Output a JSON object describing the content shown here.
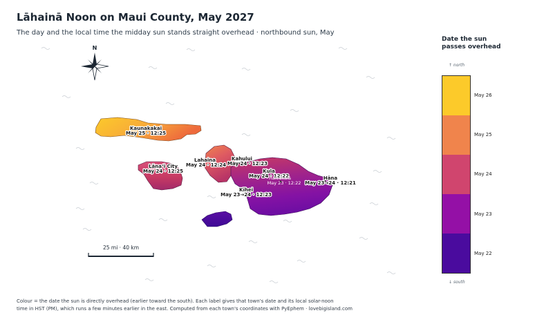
{
  "header": {
    "title": "Lāhainā Noon on Maui County, May 2027",
    "subtitle": "The day and the local time the midday sun stands straight overhead  ·  northbound sun, May"
  },
  "compass": {
    "north_label": "N"
  },
  "scale_bar": {
    "label": "25 mi  ·  40 km"
  },
  "legend": {
    "title_line1": "Date the sun",
    "title_line2": "passes overhead",
    "north_note": "↑ north",
    "south_note": "↓ south",
    "stops": [
      {
        "label": "May 26",
        "color": "#fcca2a"
      },
      {
        "label": "May 25",
        "color": "#f0844c"
      },
      {
        "label": "May 24",
        "color": "#d0456e"
      },
      {
        "label": "May 23",
        "color": "#9410a6"
      },
      {
        "label": "May 22",
        "color": "#4a0b9e"
      }
    ]
  },
  "towns": [
    {
      "name": "Kaunakakai",
      "time": "May 25 · 12:25"
    },
    {
      "name": "Lāna‘i City",
      "time": "May 24 · 12:25"
    },
    {
      "name": "Lahaina",
      "time": "May 24 · 12:24"
    },
    {
      "name": "Kahului",
      "time": "May 24 · 12:23"
    },
    {
      "name": "Kula",
      "time": "May 24 · 12:22"
    },
    {
      "name": "Haleakalā",
      "time": "May 23 · 12:22"
    },
    {
      "name": "Kīhei",
      "time": "May 23→24 · 12:23"
    },
    {
      "name": "Hāna",
      "time": "May 23→24 · 12:21"
    }
  ],
  "footer": {
    "line1": "Colour = the date the sun is directly overhead (earlier toward the south).  Each label gives that town's date and its local solar-noon",
    "line2": "time in HST (PM), which runs a few minutes earlier in the east.  Computed from each town's coordinates with PyEphem  ·  lovebigisland.com"
  },
  "colors": {
    "ocean_wave": "#c7ccd2",
    "ink": "#1c2733"
  }
}
